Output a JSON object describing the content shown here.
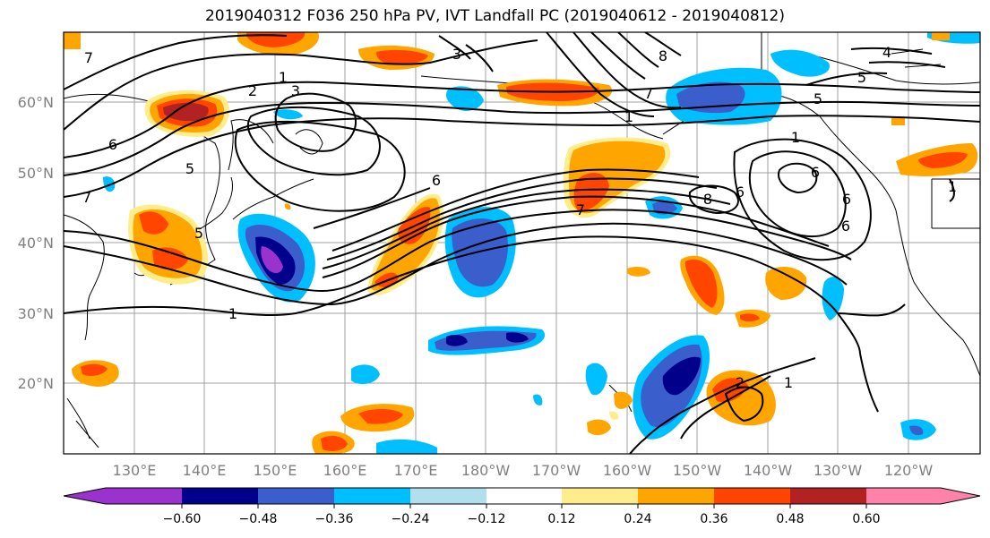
{
  "title": "2019040312 F036 250 hPa PV, IVT Landfall PC (2019040612 - 2019040812)",
  "map": {
    "lat_labels": [
      "60°N",
      "50°N",
      "40°N",
      "30°N",
      "20°N"
    ],
    "lon_labels": [
      "130°E",
      "140°E",
      "150°E",
      "160°E",
      "170°E",
      "180°W",
      "170°W",
      "160°W",
      "150°W",
      "140°W",
      "130°W",
      "120°W"
    ],
    "contour_labels": [
      "1",
      "2",
      "3",
      "5",
      "6",
      "7",
      "5",
      "6",
      "7",
      "1",
      "3",
      "7",
      "8",
      "1",
      "4",
      "5",
      "5",
      "1",
      "6",
      "6",
      "7",
      "8",
      "6",
      "6",
      "1",
      "2",
      "1"
    ],
    "colors": {
      "neg_strong": "#9a32cd",
      "neg_navy": "#00008b",
      "neg_blue": "#3a5fcd",
      "neg_sky": "#00bfff",
      "neg_light": "#b2dfee",
      "pos_yellow": "#ffec8b",
      "pos_orange": "#ffa500",
      "pos_red": "#ff4500",
      "pos_dark": "#b22222",
      "pos_pink": "#ff82ab"
    }
  },
  "colorbar": {
    "ticks": [
      "−0.60",
      "−0.48",
      "−0.36",
      "−0.24",
      "−0.12",
      "0.12",
      "0.24",
      "0.36",
      "0.48",
      "0.60"
    ],
    "colors": [
      "#9a32cd",
      "#00008b",
      "#3a5fcd",
      "#00bfff",
      "#b2dfee",
      "#ffffff",
      "#ffec8b",
      "#ffa500",
      "#ff4500",
      "#b22222",
      "#ff82ab"
    ]
  }
}
